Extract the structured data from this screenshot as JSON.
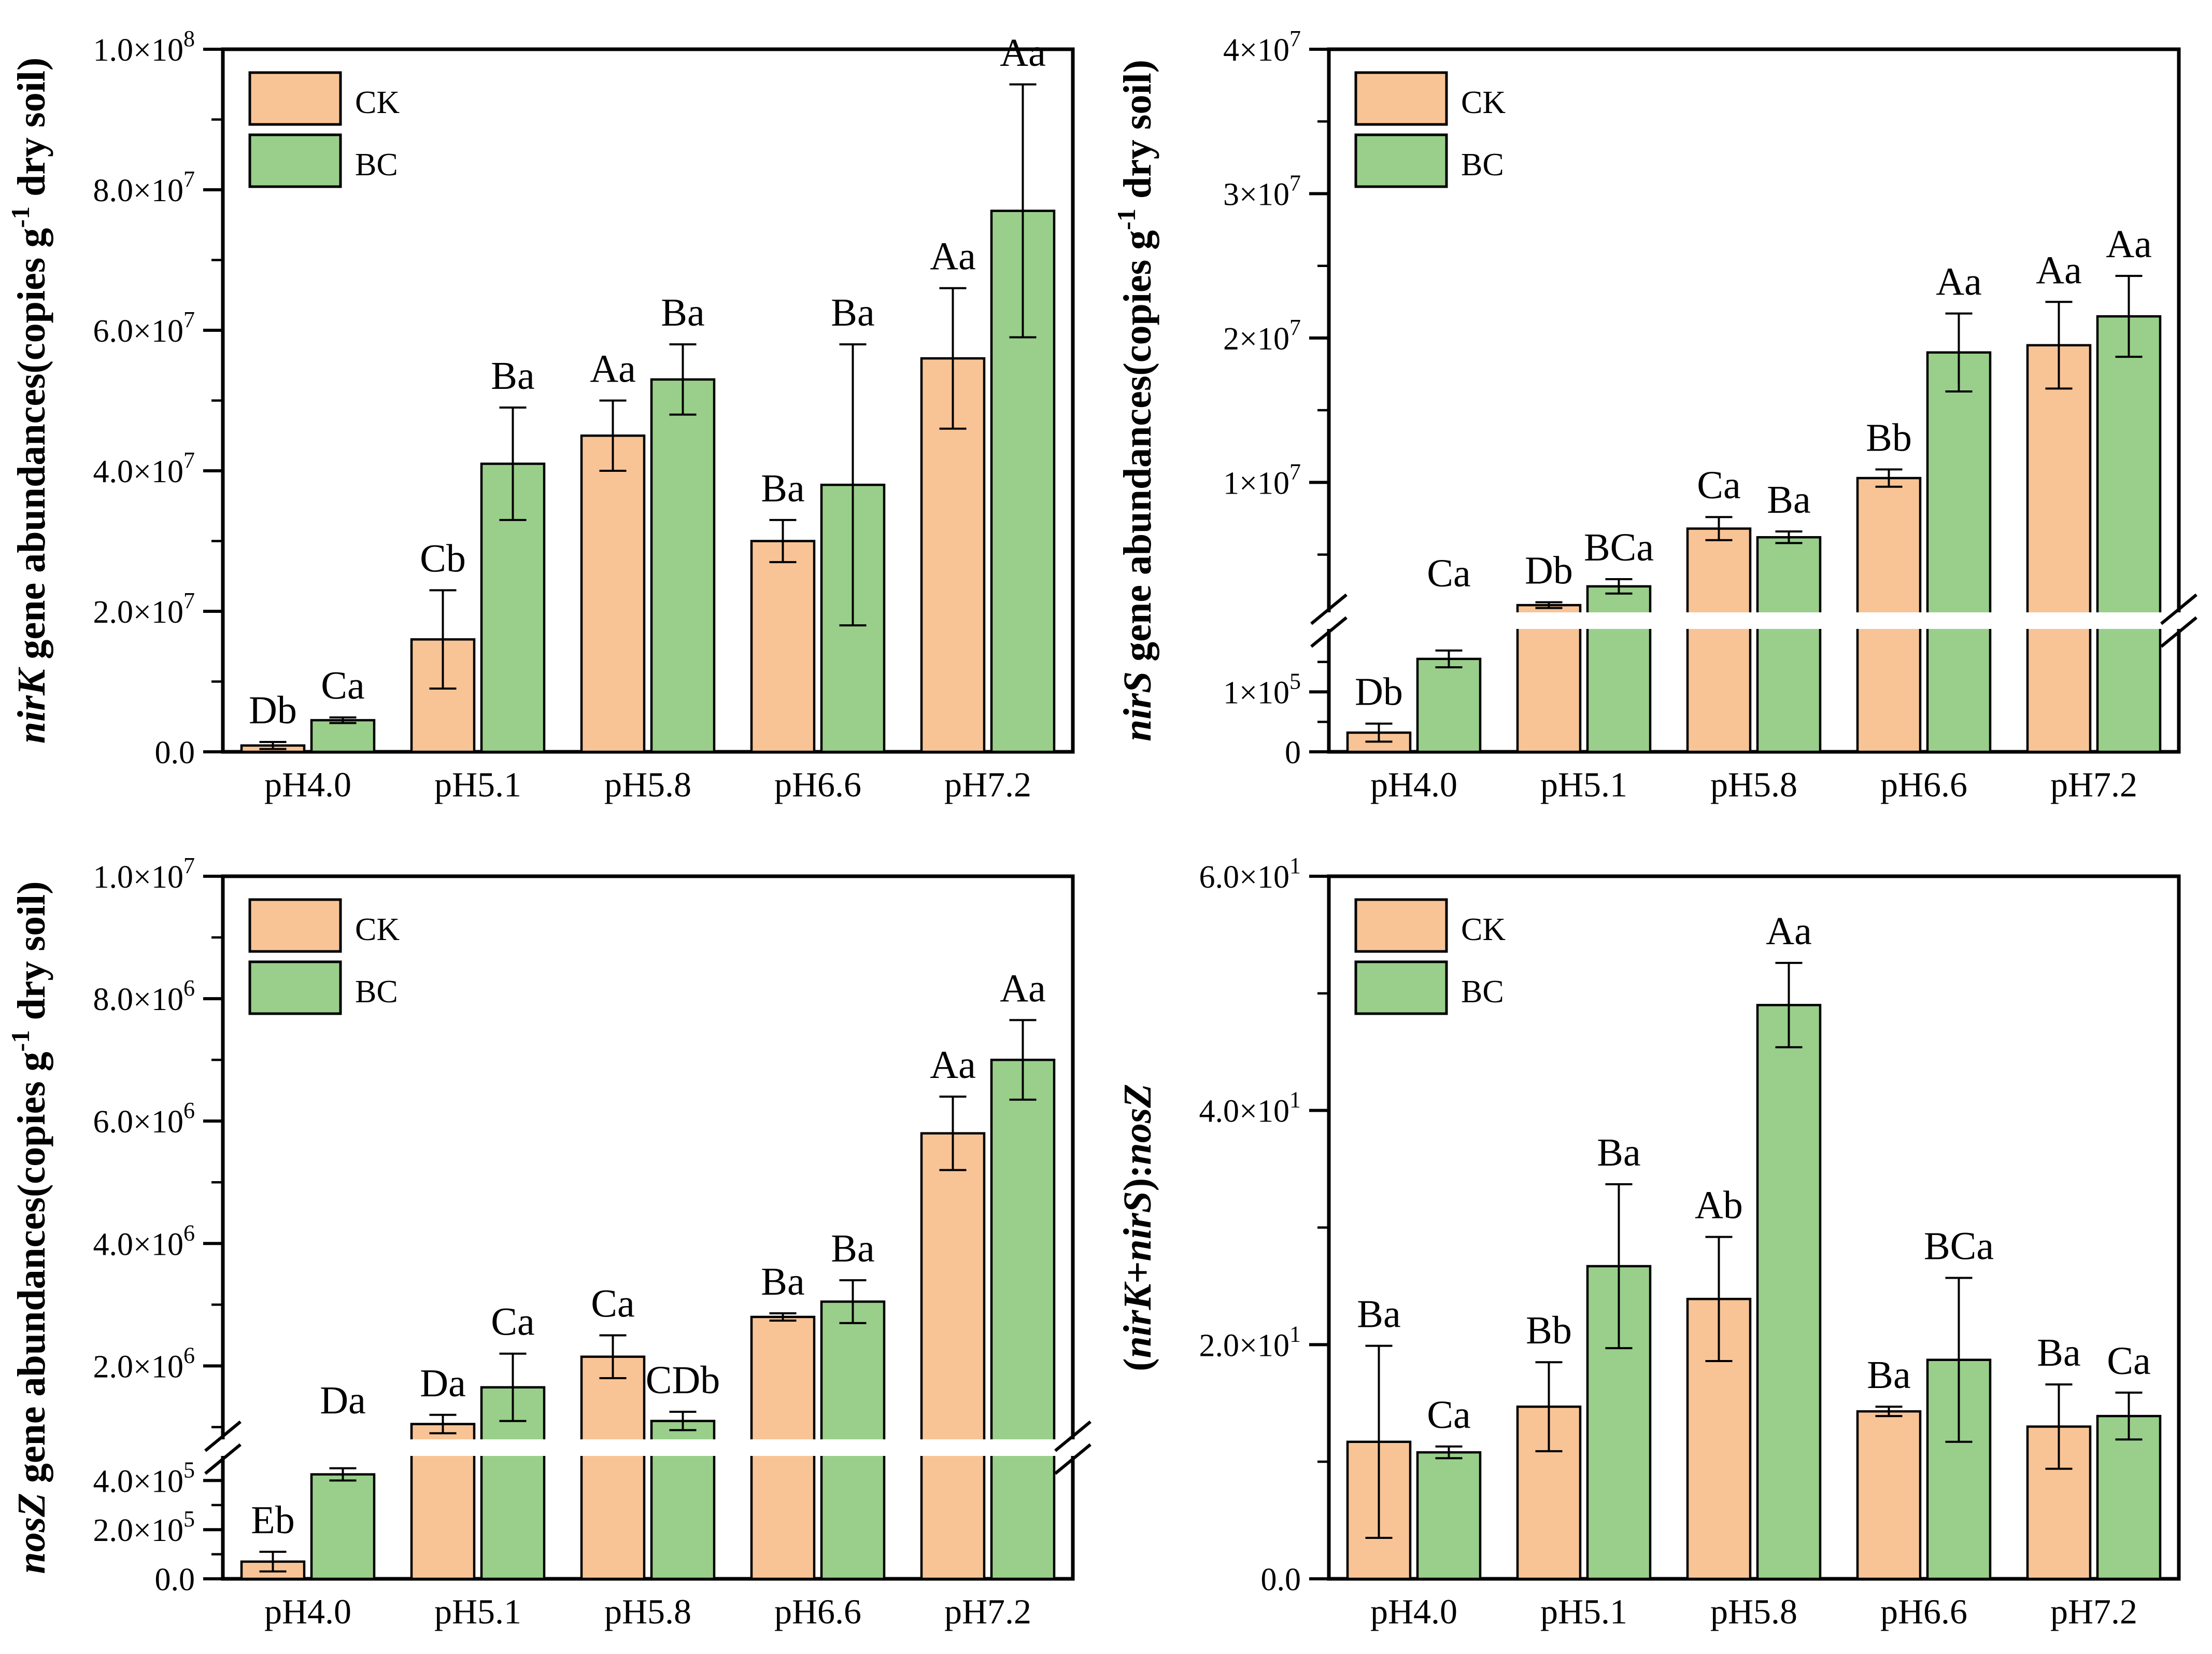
{
  "figure": {
    "background": "#ffffff",
    "bar_edge_color": "#000000",
    "ck_color": "#F8C496",
    "bc_color": "#99CF8A",
    "legend_labels": [
      "CK",
      "BC"
    ]
  },
  "chart_data": [
    {
      "id": "nirK",
      "type": "bar",
      "legend_position": "top-left",
      "grid": false,
      "ylabel_parts": [
        {
          "text": "nirK",
          "style": "gene"
        },
        {
          "text": " gene abundances(copies g",
          "style": "plain"
        },
        {
          "text": "-1",
          "style": "sup"
        },
        {
          "text": " dry soil)",
          "style": "plain"
        }
      ],
      "categories": [
        "pH4.0",
        "pH5.1",
        "pH5.8",
        "pH6.6",
        "pH7.2"
      ],
      "series": [
        {
          "name": "CK",
          "color": "#F8C496",
          "values": [
            900000,
            16000000,
            45000000,
            30000000,
            56000000
          ],
          "errors": [
            500000,
            7000000,
            5000000,
            3000000,
            10000000
          ],
          "sig_labels": [
            "Db",
            "Cb",
            "Aa",
            "Ba",
            "Aa"
          ]
        },
        {
          "name": "BC",
          "color": "#99CF8A",
          "values": [
            4500000,
            41000000,
            53000000,
            38000000,
            77000000
          ],
          "errors": [
            400000,
            8000000,
            5000000,
            20000000,
            18000000
          ],
          "sig_labels": [
            "Ca",
            "Ba",
            "Ba",
            "Ba",
            "Aa"
          ]
        }
      ],
      "axis": {
        "mode": "linear",
        "upper": {
          "min": 0,
          "max": 100000000
        },
        "ticks_upper": [
          {
            "v": 0,
            "base": "0.0",
            "exp": ""
          },
          {
            "v": 20000000,
            "base": "2.0×10",
            "exp": "7"
          },
          {
            "v": 40000000,
            "base": "4.0×10",
            "exp": "7"
          },
          {
            "v": 60000000,
            "base": "6.0×10",
            "exp": "7"
          },
          {
            "v": 80000000,
            "base": "8.0×10",
            "exp": "7"
          },
          {
            "v": 100000000,
            "base": "1.0×10",
            "exp": "8"
          }
        ],
        "minor_upper": [
          10000000,
          30000000,
          50000000,
          70000000,
          90000000
        ]
      }
    },
    {
      "id": "nirS",
      "type": "bar",
      "legend_position": "top-left",
      "grid": false,
      "ylabel_parts": [
        {
          "text": "nirS",
          "style": "gene"
        },
        {
          "text": " gene abundances(copies g",
          "style": "plain"
        },
        {
          "text": "-1",
          "style": "sup"
        },
        {
          "text": " dry soil)",
          "style": "plain"
        }
      ],
      "categories": [
        "pH4.0",
        "pH5.1",
        "pH5.8",
        "pH6.6",
        "pH7.2"
      ],
      "series": [
        {
          "name": "CK",
          "color": "#F8C496",
          "values": [
            32000,
            1500000,
            6800000,
            10300000,
            19500000
          ],
          "errors": [
            15000,
            200000,
            800000,
            600000,
            3000000
          ],
          "sig_labels": [
            "Db",
            "Db",
            "Ca",
            "Bb",
            "Aa"
          ]
        },
        {
          "name": "BC",
          "color": "#99CF8A",
          "values": [
            155000,
            2800000,
            6200000,
            19000000,
            21500000
          ],
          "errors": [
            14000,
            500000,
            400000,
            2700000,
            2800000
          ],
          "sig_labels": [
            "Ca",
            "BCa",
            "Ba",
            "Aa",
            "Aa"
          ]
        }
      ],
      "axis": {
        "mode": "broken",
        "lower": {
          "min": 0,
          "max": 205000
        },
        "upper": {
          "min": 1000000,
          "max": 40000000
        },
        "ticks_lower": [
          {
            "v": 0,
            "base": "0",
            "exp": ""
          },
          {
            "v": 100000,
            "base": "1×10",
            "exp": "5"
          }
        ],
        "ticks_upper": [
          {
            "v": 10000000,
            "base": "1×10",
            "exp": "7"
          },
          {
            "v": 20000000,
            "base": "2×10",
            "exp": "7"
          },
          {
            "v": 30000000,
            "base": "3×10",
            "exp": "7"
          },
          {
            "v": 40000000,
            "base": "4×10",
            "exp": "7"
          }
        ],
        "minor_lower": [
          50000,
          150000
        ],
        "minor_upper": [
          5000000,
          15000000,
          25000000,
          35000000
        ]
      }
    },
    {
      "id": "nosZ",
      "type": "bar",
      "legend_position": "top-left",
      "grid": false,
      "ylabel_parts": [
        {
          "text": "nosZ",
          "style": "gene"
        },
        {
          "text": " gene abundances(copies g",
          "style": "plain"
        },
        {
          "text": "-1",
          "style": "sup"
        },
        {
          "text": " dry soil)",
          "style": "plain"
        }
      ],
      "categories": [
        "pH4.0",
        "pH5.1",
        "pH5.8",
        "pH6.6",
        "pH7.2"
      ],
      "series": [
        {
          "name": "CK",
          "color": "#F8C496",
          "values": [
            70000,
            1050000,
            2150000,
            2800000,
            5800000
          ],
          "errors": [
            40000,
            150000,
            350000,
            60000,
            600000
          ],
          "sig_labels": [
            "Eb",
            "Da",
            "Ca",
            "Ba",
            "Aa"
          ]
        },
        {
          "name": "BC",
          "color": "#99CF8A",
          "values": [
            425000,
            1650000,
            1100000,
            3050000,
            7000000
          ],
          "errors": [
            25000,
            550000,
            150000,
            350000,
            650000
          ],
          "sig_labels": [
            "Da",
            "Ca",
            "CDb",
            "Ba",
            "Aa"
          ]
        }
      ],
      "axis": {
        "mode": "broken",
        "lower": {
          "min": 0,
          "max": 500000
        },
        "upper": {
          "min": 800000,
          "max": 10000000
        },
        "ticks_lower": [
          {
            "v": 0,
            "base": "0.0",
            "exp": ""
          },
          {
            "v": 200000,
            "base": "2.0×10",
            "exp": "5"
          },
          {
            "v": 400000,
            "base": "4.0×10",
            "exp": "5"
          }
        ],
        "ticks_upper": [
          {
            "v": 2000000,
            "base": "2.0×10",
            "exp": "6"
          },
          {
            "v": 4000000,
            "base": "4.0×10",
            "exp": "6"
          },
          {
            "v": 6000000,
            "base": "6.0×10",
            "exp": "6"
          },
          {
            "v": 8000000,
            "base": "8.0×10",
            "exp": "6"
          },
          {
            "v": 10000000,
            "base": "1.0×10",
            "exp": "7"
          }
        ],
        "minor_lower": [
          100000,
          300000
        ],
        "minor_upper": [
          1000000,
          3000000,
          5000000,
          7000000,
          9000000
        ]
      }
    },
    {
      "id": "ratio",
      "type": "bar",
      "legend_position": "top-left",
      "grid": false,
      "ylabel_parts": [
        {
          "text": "(",
          "style": "plain"
        },
        {
          "text": "nirK",
          "style": "gene"
        },
        {
          "text": "+",
          "style": "plain"
        },
        {
          "text": "nirS",
          "style": "gene"
        },
        {
          "text": "):",
          "style": "plain"
        },
        {
          "text": "nosZ",
          "style": "gene"
        }
      ],
      "categories": [
        "pH4.0",
        "pH5.1",
        "pH5.8",
        "pH6.6",
        "pH7.2"
      ],
      "series": [
        {
          "name": "CK",
          "color": "#F8C496",
          "values": [
            11.7,
            14.7,
            23.9,
            14.3,
            13.0
          ],
          "errors": [
            8.2,
            3.8,
            5.3,
            0.4,
            3.6
          ],
          "sig_labels": [
            "Ba",
            "Bb",
            "Ab",
            "Ba",
            "Ba"
          ]
        },
        {
          "name": "BC",
          "color": "#99CF8A",
          "values": [
            10.8,
            26.7,
            49.0,
            18.7,
            13.9
          ],
          "errors": [
            0.5,
            7.0,
            3.6,
            7.0,
            2.0
          ],
          "sig_labels": [
            "Ca",
            "Ba",
            "Aa",
            "BCa",
            "Ca"
          ]
        }
      ],
      "axis": {
        "mode": "linear",
        "upper": {
          "min": 0,
          "max": 60
        },
        "ticks_upper": [
          {
            "v": 0,
            "base": "0.0",
            "exp": ""
          },
          {
            "v": 20,
            "base": "2.0×10",
            "exp": "1"
          },
          {
            "v": 40,
            "base": "4.0×10",
            "exp": "1"
          },
          {
            "v": 60,
            "base": "6.0×10",
            "exp": "1"
          }
        ],
        "minor_upper": [
          10,
          30,
          50
        ]
      }
    }
  ]
}
